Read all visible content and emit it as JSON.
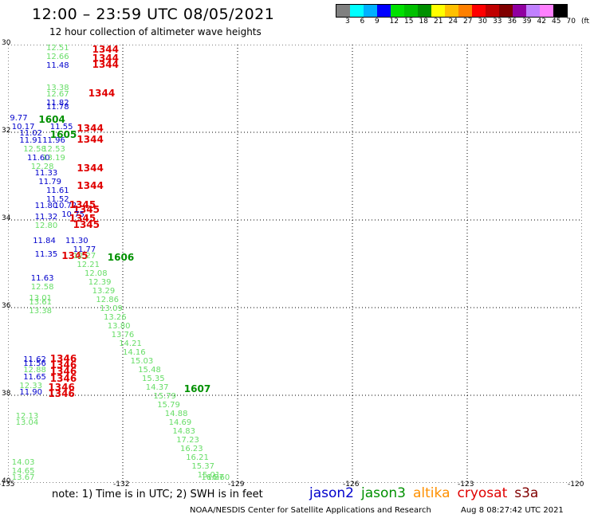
{
  "title": "12:00 – 23:59 UTC 08/05/2021",
  "subtitle": "12 hour collection of altimeter wave heights",
  "colorbar": {
    "colors": [
      "#808080",
      "#00ffff",
      "#00b0ff",
      "#0000ff",
      "#00e000",
      "#00c000",
      "#009000",
      "#ffff00",
      "#ffc000",
      "#ff8000",
      "#ff0000",
      "#c00000",
      "#800000",
      "#9000a0",
      "#c080ff",
      "#ff80ff",
      "#000000"
    ],
    "labels": [
      "3",
      "6",
      "9",
      "12",
      "15",
      "18",
      "21",
      "24",
      "27",
      "30",
      "33",
      "36",
      "39",
      "42",
      "45",
      "70",
      "(ft)"
    ]
  },
  "axes": {
    "y_ticks": [
      "30",
      "32",
      "34",
      "36",
      "38",
      "40"
    ],
    "x_ticks": [
      "-135",
      "-132",
      "-129",
      "-126",
      "-123",
      "-120"
    ]
  },
  "note": "note: 1) Time is in UTC; 2) SWH is in feet",
  "legend": [
    {
      "name": "jason2",
      "color": "#0000cc"
    },
    {
      "name": "jason3",
      "color": "#009000"
    },
    {
      "name": "altika",
      "color": "#ff9000"
    },
    {
      "name": "cryosat",
      "color": "#e00000"
    },
    {
      "name": "s3a",
      "color": "#800000"
    }
  ],
  "credit": "NOAA/NESDIS Center for Satellite Applications and Research",
  "timestamp": "Aug  8 08:27:42 UTC 2021",
  "colors": {
    "light_green": "#66dd66",
    "green": "#009000",
    "blue": "#0000cc",
    "red": "#e00000",
    "grid": "#000000"
  },
  "map_data": {
    "lat_range": [
      30,
      40
    ],
    "lon_range": [
      -135,
      -120
    ],
    "observations": [
      {
        "t": "12.51",
        "x": -134.0,
        "y": 30.0,
        "c": "light_green",
        "k": "v"
      },
      {
        "t": "12.66",
        "x": -134.0,
        "y": 30.2,
        "c": "light_green",
        "k": "v"
      },
      {
        "t": "11.48",
        "x": -134.0,
        "y": 30.4,
        "c": "blue",
        "k": "v"
      },
      {
        "t": "1344",
        "x": -132.8,
        "y": 30.0,
        "c": "red",
        "k": "t"
      },
      {
        "t": "1344",
        "x": -132.8,
        "y": 30.2,
        "c": "red",
        "k": "t"
      },
      {
        "t": "1344",
        "x": -132.8,
        "y": 30.35,
        "c": "red",
        "k": "t"
      },
      {
        "t": "13.38",
        "x": -134.0,
        "y": 30.9,
        "c": "light_green",
        "k": "v"
      },
      {
        "t": "12.67",
        "x": -134.0,
        "y": 31.05,
        "c": "light_green",
        "k": "v"
      },
      {
        "t": "11.82",
        "x": -134.0,
        "y": 31.25,
        "c": "blue",
        "k": "v"
      },
      {
        "t": "11.78",
        "x": -134.0,
        "y": 31.35,
        "c": "blue",
        "k": "v"
      },
      {
        "t": "1344",
        "x": -132.9,
        "y": 31.0,
        "c": "red",
        "k": "t"
      },
      {
        "t": "9.77",
        "x": -134.95,
        "y": 31.6,
        "c": "blue",
        "k": "v"
      },
      {
        "t": "1604",
        "x": -134.2,
        "y": 31.6,
        "c": "green",
        "k": "t"
      },
      {
        "t": "10.17",
        "x": -134.9,
        "y": 31.8,
        "c": "blue",
        "k": "v"
      },
      {
        "t": "11.55",
        "x": -133.9,
        "y": 31.8,
        "c": "blue",
        "k": "v"
      },
      {
        "t": "1344",
        "x": -133.2,
        "y": 31.8,
        "c": "red",
        "k": "t"
      },
      {
        "t": "11.02",
        "x": -134.7,
        "y": 31.95,
        "c": "blue",
        "k": "v"
      },
      {
        "t": "1605",
        "x": -133.9,
        "y": 31.95,
        "c": "green",
        "k": "t"
      },
      {
        "t": "11.91",
        "x": -134.7,
        "y": 32.1,
        "c": "blue",
        "k": "v"
      },
      {
        "t": "11.96",
        "x": -134.1,
        "y": 32.1,
        "c": "blue",
        "k": "v"
      },
      {
        "t": "1344",
        "x": -133.2,
        "y": 32.05,
        "c": "red",
        "k": "t"
      },
      {
        "t": "12.58",
        "x": -134.6,
        "y": 32.3,
        "c": "light_green",
        "k": "v"
      },
      {
        "t": "12.53",
        "x": -134.1,
        "y": 32.3,
        "c": "light_green",
        "k": "v"
      },
      {
        "t": "11.60",
        "x": -134.5,
        "y": 32.5,
        "c": "blue",
        "k": "v"
      },
      {
        "t": "13.19",
        "x": -134.1,
        "y": 32.5,
        "c": "light_green",
        "k": "v"
      },
      {
        "t": "12.28",
        "x": -134.4,
        "y": 32.7,
        "c": "light_green",
        "k": "v"
      },
      {
        "t": "1344",
        "x": -133.2,
        "y": 32.7,
        "c": "red",
        "k": "t"
      },
      {
        "t": "11.33",
        "x": -134.3,
        "y": 32.85,
        "c": "blue",
        "k": "v"
      },
      {
        "t": "11.79",
        "x": -134.2,
        "y": 33.05,
        "c": "blue",
        "k": "v"
      },
      {
        "t": "1344",
        "x": -133.2,
        "y": 33.1,
        "c": "red",
        "k": "t"
      },
      {
        "t": "11.61",
        "x": -134.0,
        "y": 33.25,
        "c": "blue",
        "k": "v"
      },
      {
        "t": "11.52",
        "x": -134.0,
        "y": 33.45,
        "c": "blue",
        "k": "v"
      },
      {
        "t": "11.80",
        "x": -134.3,
        "y": 33.6,
        "c": "blue",
        "k": "v"
      },
      {
        "t": "10.72",
        "x": -133.8,
        "y": 33.6,
        "c": "blue",
        "k": "v"
      },
      {
        "t": "1345",
        "x": -133.4,
        "y": 33.55,
        "c": "red",
        "k": "t"
      },
      {
        "t": "1345",
        "x": -133.3,
        "y": 33.65,
        "c": "red",
        "k": "t"
      },
      {
        "t": "10.75",
        "x": -133.6,
        "y": 33.8,
        "c": "blue",
        "k": "v"
      },
      {
        "t": "11.32",
        "x": -134.3,
        "y": 33.85,
        "c": "blue",
        "k": "v"
      },
      {
        "t": "1345",
        "x": -133.4,
        "y": 33.85,
        "c": "red",
        "k": "t"
      },
      {
        "t": "12.80",
        "x": -134.3,
        "y": 34.05,
        "c": "light_green",
        "k": "v"
      },
      {
        "t": "1345",
        "x": -133.3,
        "y": 34.0,
        "c": "red",
        "k": "t"
      },
      {
        "t": "11.84",
        "x": -134.35,
        "y": 34.4,
        "c": "blue",
        "k": "v"
      },
      {
        "t": "11.30",
        "x": -133.5,
        "y": 34.4,
        "c": "blue",
        "k": "v"
      },
      {
        "t": "11.77",
        "x": -133.3,
        "y": 34.6,
        "c": "blue",
        "k": "v"
      },
      {
        "t": "11.35",
        "x": -134.3,
        "y": 34.7,
        "c": "blue",
        "k": "v"
      },
      {
        "t": "1345",
        "x": -133.6,
        "y": 34.7,
        "c": "red",
        "k": "t"
      },
      {
        "t": "12.27",
        "x": -133.3,
        "y": 34.75,
        "c": "light_green",
        "k": "v"
      },
      {
        "t": "1606",
        "x": -132.4,
        "y": 34.75,
        "c": "green",
        "k": "t"
      },
      {
        "t": "12.21",
        "x": -133.2,
        "y": 34.95,
        "c": "light_green",
        "k": "v"
      },
      {
        "t": "12.08",
        "x": -133.0,
        "y": 35.15,
        "c": "light_green",
        "k": "v"
      },
      {
        "t": "11.63",
        "x": -134.4,
        "y": 35.25,
        "c": "blue",
        "k": "v"
      },
      {
        "t": "12.39",
        "x": -132.9,
        "y": 35.35,
        "c": "light_green",
        "k": "v"
      },
      {
        "t": "12.58",
        "x": -134.4,
        "y": 35.45,
        "c": "light_green",
        "k": "v"
      },
      {
        "t": "13.29",
        "x": -132.8,
        "y": 35.55,
        "c": "light_green",
        "k": "v"
      },
      {
        "t": "12.86",
        "x": -132.7,
        "y": 35.75,
        "c": "light_green",
        "k": "v"
      },
      {
        "t": "13.01",
        "x": -134.45,
        "y": 35.7,
        "c": "light_green",
        "k": "v"
      },
      {
        "t": "13.61",
        "x": -134.45,
        "y": 35.8,
        "c": "light_green",
        "k": "v"
      },
      {
        "t": "13.09",
        "x": -132.6,
        "y": 35.95,
        "c": "light_green",
        "k": "v"
      },
      {
        "t": "13.38",
        "x": -134.45,
        "y": 36.0,
        "c": "light_green",
        "k": "v"
      },
      {
        "t": "13.26",
        "x": -132.5,
        "y": 36.15,
        "c": "light_green",
        "k": "v"
      },
      {
        "t": "13.80",
        "x": -132.4,
        "y": 36.35,
        "c": "light_green",
        "k": "v"
      },
      {
        "t": "13.76",
        "x": -132.3,
        "y": 36.55,
        "c": "light_green",
        "k": "v"
      },
      {
        "t": "14.21",
        "x": -132.1,
        "y": 36.75,
        "c": "light_green",
        "k": "v"
      },
      {
        "t": "14.16",
        "x": -132.0,
        "y": 36.95,
        "c": "light_green",
        "k": "v"
      },
      {
        "t": "11.62",
        "x": -134.6,
        "y": 37.1,
        "c": "blue",
        "k": "v"
      },
      {
        "t": "11.56",
        "x": -134.6,
        "y": 37.2,
        "c": "blue",
        "k": "v"
      },
      {
        "t": "1346",
        "x": -133.9,
        "y": 37.05,
        "c": "red",
        "k": "t"
      },
      {
        "t": "1346",
        "x": -133.9,
        "y": 37.2,
        "c": "red",
        "k": "t"
      },
      {
        "t": "15.03",
        "x": -131.8,
        "y": 37.15,
        "c": "light_green",
        "k": "v"
      },
      {
        "t": "12.88",
        "x": -134.6,
        "y": 37.35,
        "c": "light_green",
        "k": "v"
      },
      {
        "t": "1346",
        "x": -133.9,
        "y": 37.35,
        "c": "red",
        "k": "t"
      },
      {
        "t": "11.65",
        "x": -134.6,
        "y": 37.5,
        "c": "blue",
        "k": "v"
      },
      {
        "t": "1346",
        "x": -133.9,
        "y": 37.5,
        "c": "red",
        "k": "t"
      },
      {
        "t": "15.48",
        "x": -131.6,
        "y": 37.35,
        "c": "light_green",
        "k": "v"
      },
      {
        "t": "15.35",
        "x": -131.5,
        "y": 37.55,
        "c": "light_green",
        "k": "v"
      },
      {
        "t": "12.33",
        "x": -134.7,
        "y": 37.7,
        "c": "light_green",
        "k": "v"
      },
      {
        "t": "1346",
        "x": -133.95,
        "y": 37.7,
        "c": "red",
        "k": "t"
      },
      {
        "t": "14.37",
        "x": -131.4,
        "y": 37.75,
        "c": "light_green",
        "k": "v"
      },
      {
        "t": "1607",
        "x": -130.4,
        "y": 37.75,
        "c": "green",
        "k": "t"
      },
      {
        "t": "11.90",
        "x": -134.7,
        "y": 37.85,
        "c": "blue",
        "k": "v"
      },
      {
        "t": "1346",
        "x": -133.95,
        "y": 37.85,
        "c": "red",
        "k": "t"
      },
      {
        "t": "15.79",
        "x": -131.2,
        "y": 37.95,
        "c": "light_green",
        "k": "v"
      },
      {
        "t": "15.79",
        "x": -131.1,
        "y": 38.15,
        "c": "light_green",
        "k": "v"
      },
      {
        "t": "14.88",
        "x": -130.9,
        "y": 38.35,
        "c": "light_green",
        "k": "v"
      },
      {
        "t": "12.13",
        "x": -134.8,
        "y": 38.4,
        "c": "light_green",
        "k": "v"
      },
      {
        "t": "13.04",
        "x": -134.8,
        "y": 38.55,
        "c": "light_green",
        "k": "v"
      },
      {
        "t": "14.69",
        "x": -130.8,
        "y": 38.55,
        "c": "light_green",
        "k": "v"
      },
      {
        "t": "14.83",
        "x": -130.7,
        "y": 38.75,
        "c": "light_green",
        "k": "v"
      },
      {
        "t": "17.23",
        "x": -130.6,
        "y": 38.95,
        "c": "light_green",
        "k": "v"
      },
      {
        "t": "16.23",
        "x": -130.5,
        "y": 39.15,
        "c": "light_green",
        "k": "v"
      },
      {
        "t": "16.21",
        "x": -130.35,
        "y": 39.35,
        "c": "light_green",
        "k": "v"
      },
      {
        "t": "14.03",
        "x": -134.9,
        "y": 39.45,
        "c": "light_green",
        "k": "v"
      },
      {
        "t": "15.37",
        "x": -130.2,
        "y": 39.55,
        "c": "light_green",
        "k": "v"
      },
      {
        "t": "14.65",
        "x": -134.9,
        "y": 39.65,
        "c": "light_green",
        "k": "v"
      },
      {
        "t": "15.01",
        "x": -130.05,
        "y": 39.75,
        "c": "light_green",
        "k": "v"
      },
      {
        "t": "13.67",
        "x": -134.9,
        "y": 39.85,
        "c": "light_green",
        "k": "v"
      },
      {
        "t": "16.87",
        "x": -129.95,
        "y": 39.95,
        "c": "light_green",
        "k": "v"
      },
      {
        "t": "16.60",
        "x": -129.8,
        "y": 40.15,
        "c": "light_green",
        "k": "v"
      }
    ]
  }
}
